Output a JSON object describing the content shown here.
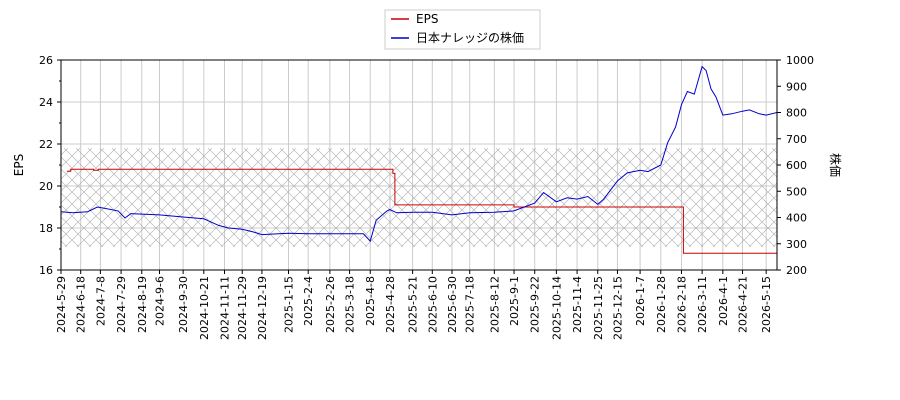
{
  "chart_data": {
    "type": "line",
    "left_axis": {
      "label": "EPS",
      "range": [
        16,
        26
      ],
      "ticks": [
        16,
        18,
        20,
        22,
        24,
        26
      ]
    },
    "right_axis": {
      "label": "株価",
      "range": [
        200,
        1000
      ],
      "ticks": [
        200,
        300,
        400,
        500,
        600,
        700,
        800,
        900,
        1000
      ]
    },
    "x_ticks": [
      "2024-5-29",
      "2024-6-18",
      "2024-7-8",
      "2024-7-29",
      "2024-8-19",
      "2024-9-6",
      "2024-9-30",
      "2024-10-21",
      "2024-11-11",
      "2024-11-29",
      "2024-12-19",
      "2025-1-15",
      "2025-2-4",
      "2025-2-26",
      "2025-3-18",
      "2025-4-8",
      "2025-4-28",
      "2025-5-21",
      "2025-6-10",
      "2025-6-30",
      "2025-7-18",
      "2025-8-12",
      "2025-9-1",
      "2025-9-22",
      "2025-10-14",
      "2025-11-4",
      "2025-11-25",
      "2025-12-15",
      "2026-1-7",
      "2026-1-28",
      "2026-2-18",
      "2026-3-11",
      "2026-4-1",
      "2026-4-21",
      "2026-5-15"
    ],
    "x_range": [
      "2024-5-29",
      "2026-5-26"
    ],
    "hatch_band": {
      "axis": "left",
      "from": 17.1,
      "to": 21.8
    },
    "grid": true,
    "legend_position": "top-center",
    "series": [
      {
        "name": "EPS",
        "axis": "left",
        "color": "#cc0000",
        "step": true,
        "points": [
          [
            "2024-6-4",
            20.7
          ],
          [
            "2024-6-8",
            20.8
          ],
          [
            "2024-7-1",
            20.75
          ],
          [
            "2024-7-6",
            20.8
          ],
          [
            "2025-4-29",
            20.8
          ],
          [
            "2025-5-1",
            20.6
          ],
          [
            "2025-5-3",
            19.1
          ],
          [
            "2025-9-1",
            19.0
          ],
          [
            "2026-2-18",
            19.0
          ],
          [
            "2026-2-20",
            16.8
          ],
          [
            "2026-5-26",
            16.8
          ]
        ]
      },
      {
        "name": "日本ナレッジの株価",
        "axis": "right",
        "color": "#0000cc",
        "points": [
          [
            "2024-5-29",
            422
          ],
          [
            "2024-6-10",
            418
          ],
          [
            "2024-6-25",
            422
          ],
          [
            "2024-7-5",
            440
          ],
          [
            "2024-7-12",
            435
          ],
          [
            "2024-7-26",
            425
          ],
          [
            "2024-8-2",
            398
          ],
          [
            "2024-8-8",
            415
          ],
          [
            "2024-8-19",
            413
          ],
          [
            "2024-9-6",
            410
          ],
          [
            "2024-9-30",
            402
          ],
          [
            "2024-10-21",
            395
          ],
          [
            "2024-11-5",
            370
          ],
          [
            "2024-11-15",
            360
          ],
          [
            "2024-11-29",
            355
          ],
          [
            "2024-12-10",
            345
          ],
          [
            "2024-12-19",
            335
          ],
          [
            "2025-1-15",
            340
          ],
          [
            "2025-2-4",
            338
          ],
          [
            "2025-2-26",
            338
          ],
          [
            "2025-3-18",
            338
          ],
          [
            "2025-4-1",
            338
          ],
          [
            "2025-4-8",
            310
          ],
          [
            "2025-4-14",
            390
          ],
          [
            "2025-4-25",
            425
          ],
          [
            "2025-4-28",
            430
          ],
          [
            "2025-5-5",
            418
          ],
          [
            "2025-5-21",
            420
          ],
          [
            "2025-6-10",
            420
          ],
          [
            "2025-6-30",
            410
          ],
          [
            "2025-7-18",
            418
          ],
          [
            "2025-8-12",
            420
          ],
          [
            "2025-9-1",
            425
          ],
          [
            "2025-9-22",
            455
          ],
          [
            "2025-10-1",
            495
          ],
          [
            "2025-10-14",
            460
          ],
          [
            "2025-10-25",
            475
          ],
          [
            "2025-11-4",
            470
          ],
          [
            "2025-11-15",
            480
          ],
          [
            "2025-11-25",
            450
          ],
          [
            "2025-12-1",
            470
          ],
          [
            "2025-12-15",
            540
          ],
          [
            "2025-12-25",
            570
          ],
          [
            "2026-1-7",
            580
          ],
          [
            "2026-1-15",
            575
          ],
          [
            "2026-1-28",
            600
          ],
          [
            "2026-2-4",
            685
          ],
          [
            "2026-2-12",
            745
          ],
          [
            "2026-2-18",
            830
          ],
          [
            "2026-2-24",
            880
          ],
          [
            "2026-3-3",
            870
          ],
          [
            "2026-3-11",
            975
          ],
          [
            "2026-3-15",
            960
          ],
          [
            "2026-3-20",
            890
          ],
          [
            "2026-3-25",
            860
          ],
          [
            "2026-4-1",
            790
          ],
          [
            "2026-4-10",
            795
          ],
          [
            "2026-4-21",
            805
          ],
          [
            "2026-4-28",
            810
          ],
          [
            "2026-5-8",
            795
          ],
          [
            "2026-5-15",
            790
          ],
          [
            "2026-5-26",
            800
          ]
        ]
      }
    ]
  }
}
